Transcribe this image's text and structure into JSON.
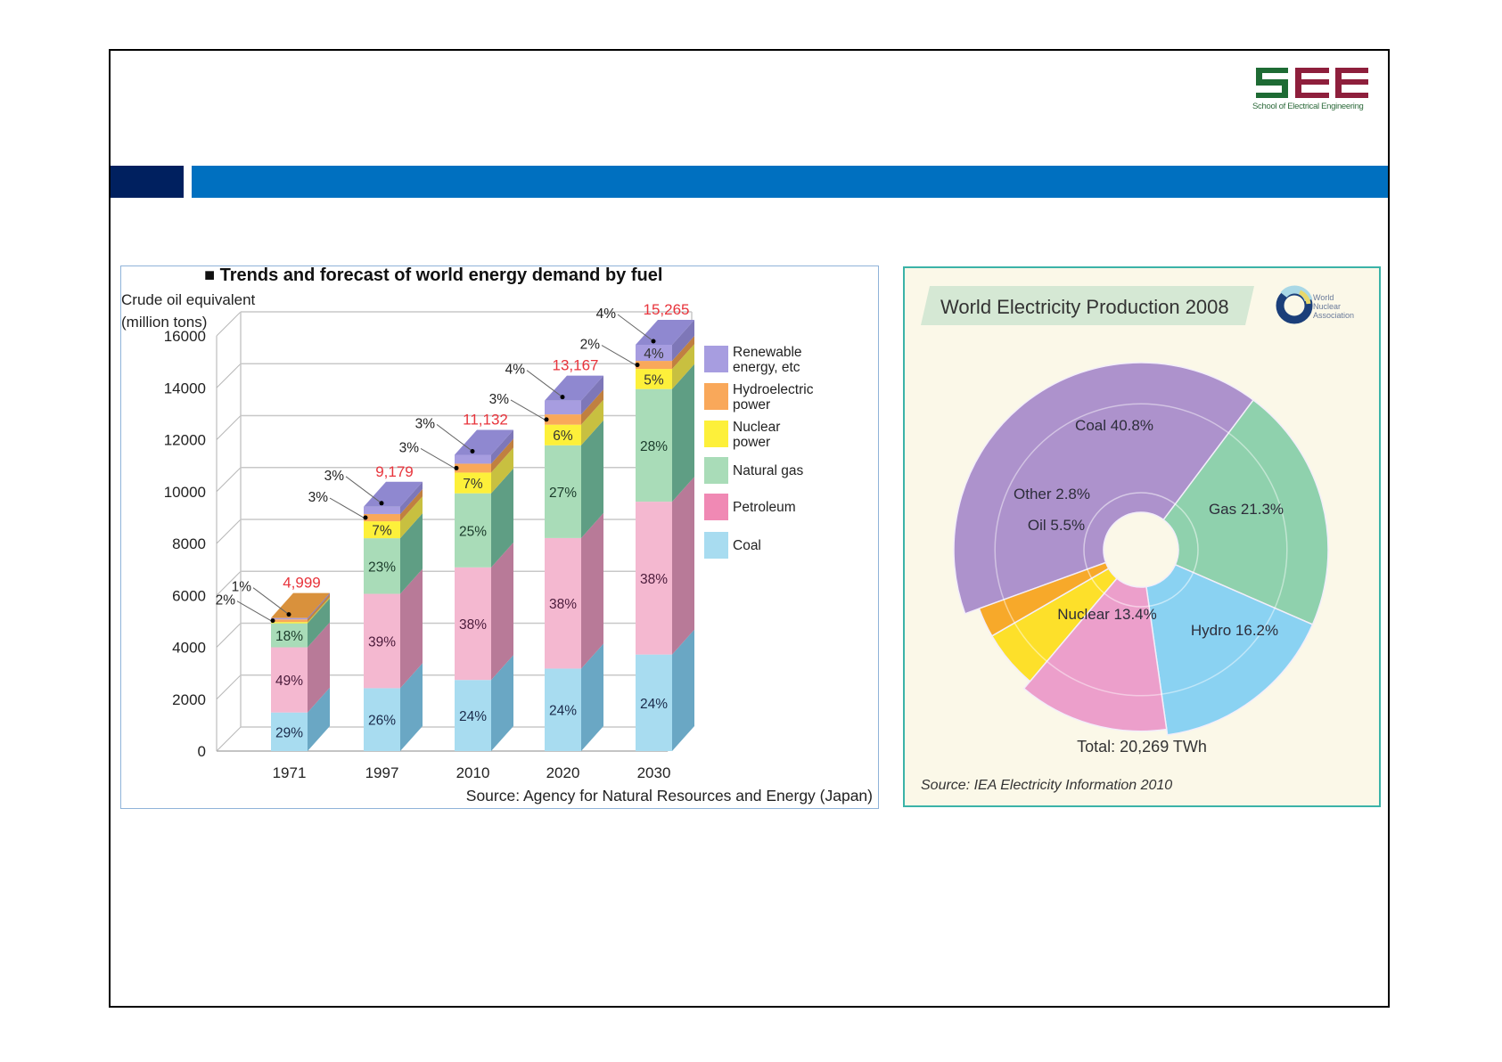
{
  "slide": {
    "logo": {
      "letters": "SEE",
      "subtitle": "School of Electrical Engineering"
    },
    "colors": {
      "header_dark": "#00205f",
      "header_blue": "#0070c0",
      "logo_green": "#1e6b34",
      "logo_red": "#8e1f3c"
    }
  },
  "chart_data": [
    {
      "type": "bar",
      "subtype": "stacked-3d",
      "title": "■ Trends and forecast of world energy demand by fuel",
      "ylabel_line1": "Crude oil equivalent",
      "ylabel_line2": "(million tons)",
      "xlabel": "",
      "ylim": [
        0,
        16000
      ],
      "yticks": [
        "0",
        "2000",
        "4000",
        "6000",
        "8000",
        "10000",
        "12000",
        "14000",
        "16000"
      ],
      "categories": [
        "1971",
        "1997",
        "2010",
        "2020",
        "2030"
      ],
      "totals": [
        4999,
        9179,
        11132,
        13167,
        15265
      ],
      "total_labels": [
        "4,999",
        "9,179",
        "11,132",
        "13,167",
        "15,265"
      ],
      "series": [
        {
          "name": "Coal",
          "color": "#a8dcf0",
          "side": "#6aa7c4",
          "values": [
            29,
            26,
            24,
            24,
            24
          ],
          "labels": [
            "29%",
            "26%",
            "24%",
            "24%",
            "24%"
          ]
        },
        {
          "name": "Petroleum",
          "color": "#f4b8d0",
          "side": "#b87a98",
          "values": [
            49,
            39,
            38,
            38,
            38
          ],
          "labels": [
            "49%",
            "39%",
            "38%",
            "38%",
            "38%"
          ]
        },
        {
          "name": "Natural gas",
          "color": "#a9dcb8",
          "side": "#5f9e84",
          "values": [
            18,
            23,
            25,
            27,
            28
          ],
          "labels": [
            "18%",
            "23%",
            "25%",
            "27%",
            "28%"
          ]
        },
        {
          "name": "Nuclear power",
          "color": "#fdf03a",
          "side": "#c8c040",
          "values": [
            1,
            7,
            7,
            6,
            5
          ],
          "labels": [
            "",
            "7%",
            "7%",
            "6%",
            "5%"
          ]
        },
        {
          "name": "Hydroelectric power",
          "color": "#f9a85a",
          "side": "#c08040",
          "values": [
            2,
            3,
            3,
            3,
            2
          ],
          "labels": [
            "2%",
            "3%",
            "3%",
            "3%",
            "2%"
          ]
        },
        {
          "name": "Renewable energy, etc",
          "color": "#a79de0",
          "side": "#7e77b8",
          "values": [
            1,
            3,
            3,
            4,
            4
          ],
          "labels": [
            "1%",
            "3%",
            "3%",
            "4%",
            "4%"
          ]
        }
      ],
      "legend": [
        {
          "line1": "Renewable",
          "line2": "energy, etc",
          "color": "#a79de0"
        },
        {
          "line1": "Hydroelectric",
          "line2": "power",
          "color": "#f9a85a"
        },
        {
          "line1": "Nuclear",
          "line2": "power",
          "color": "#fdf03a"
        },
        {
          "line1": "Natural gas",
          "line2": "",
          "color": "#a9dcb8"
        },
        {
          "line1": "Petroleum",
          "line2": "",
          "color": "#f089b4"
        },
        {
          "line1": "Coal",
          "line2": "",
          "color": "#a8dcf0"
        }
      ],
      "legend_position": "right",
      "source": "Source: Agency for Natural Resources and Energy (Japan)",
      "total_label_color": "#e8343c"
    },
    {
      "type": "pie",
      "title": "World Electricity Production 2008",
      "publisher_logo": "World Nuclear Association",
      "slices": [
        {
          "name": "Coal",
          "value": 40.8,
          "label": "Coal 40.8%",
          "color": "#ad92cc"
        },
        {
          "name": "Gas",
          "value": 21.3,
          "label": "Gas 21.3%",
          "color": "#8fd1ad"
        },
        {
          "name": "Hydro",
          "value": 16.2,
          "label": "Hydro 16.2%",
          "color": "#8ad2f2"
        },
        {
          "name": "Nuclear",
          "value": 13.4,
          "label": "Nuclear 13.4%",
          "color": "#ec9fcb"
        },
        {
          "name": "Oil",
          "value": 5.5,
          "label": "Oil 5.5%",
          "color": "#fde02a"
        },
        {
          "name": "Other",
          "value": 2.8,
          "label": "Other 2.8%",
          "color": "#f7a92a"
        }
      ],
      "total": "Total: 20,269 TWh",
      "source": "Source: IEA Electricity Information 2010"
    }
  ]
}
